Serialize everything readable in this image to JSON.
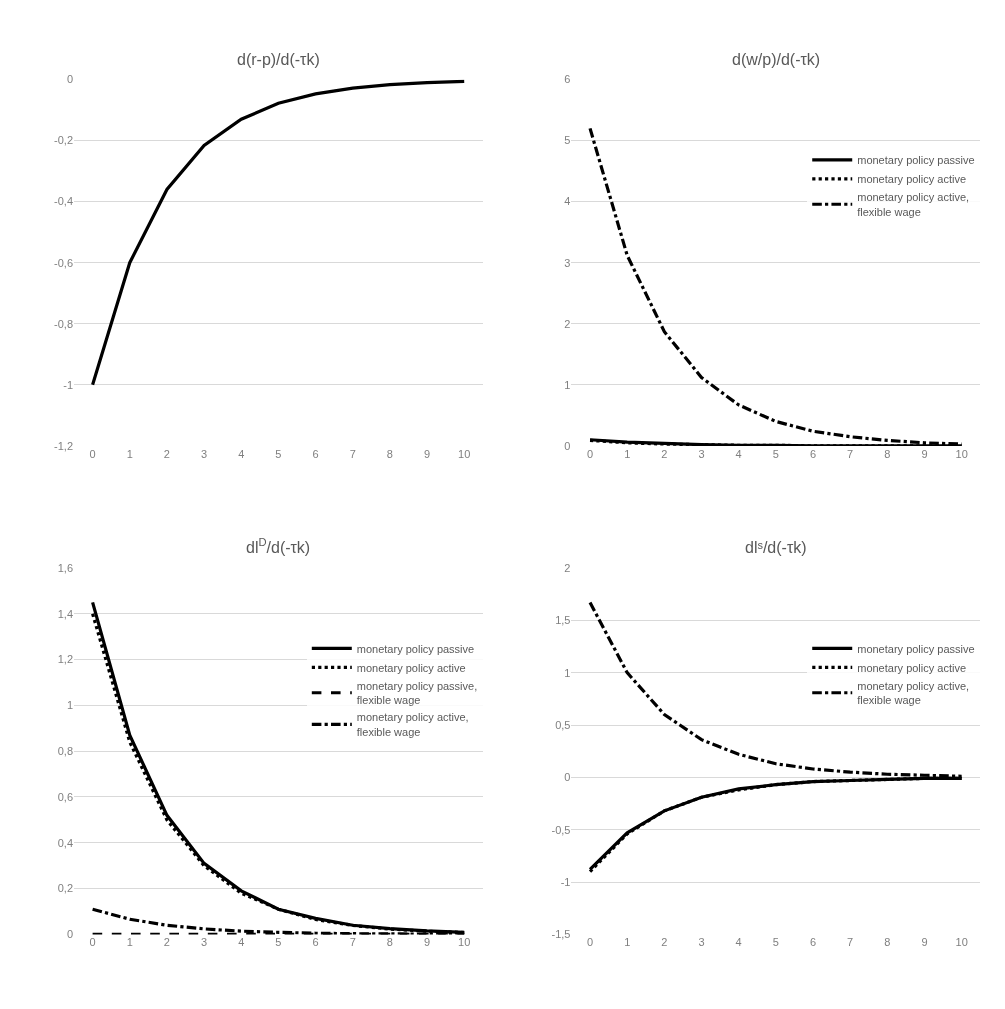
{
  "chart_data": [
    {
      "type": "line",
      "title": "d(r-p)/d(-τk)",
      "categories": [
        "0",
        "1",
        "2",
        "3",
        "4",
        "5",
        "6",
        "7",
        "8",
        "9",
        "10"
      ],
      "ylim": [
        -1.2,
        0
      ],
      "yticks": [
        {
          "value": -1.2,
          "label": "-1,2"
        },
        {
          "value": -1,
          "label": "-1"
        },
        {
          "value": -0.8,
          "label": "-0,8"
        },
        {
          "value": -0.6,
          "label": "-0,6"
        },
        {
          "value": -0.4,
          "label": "-0,4"
        },
        {
          "value": -0.2,
          "label": "-0,2"
        },
        {
          "value": 0,
          "label": "0"
        }
      ],
      "grid": "y",
      "legend": false,
      "series": [
        {
          "color": "#000000",
          "line_style": "solid",
          "values": [
            -1,
            -0.6,
            -0.36,
            -0.216,
            -0.13,
            -0.078,
            -0.047,
            -0.028,
            -0.017,
            -0.01,
            -0.006
          ]
        }
      ]
    },
    {
      "type": "line",
      "title": "d(w/p)/d(-τk)",
      "categories": [
        "0",
        "1",
        "2",
        "3",
        "4",
        "5",
        "6",
        "7",
        "8",
        "9",
        "10"
      ],
      "ylim": [
        0,
        6
      ],
      "yticks": [
        0,
        1,
        2,
        3,
        4,
        5,
        6
      ],
      "grid": "y",
      "legend": "right",
      "series": [
        {
          "name": "monetary policy passive",
          "color": "#000000",
          "line_style": "solid",
          "values": [
            0.1,
            0.06,
            0.04,
            0.02,
            0.01,
            0.01,
            0,
            0,
            0,
            0,
            0
          ]
        },
        {
          "name": "monetary policy active",
          "color": "#000000",
          "line_style": "dotted",
          "values": [
            0.09,
            0.05,
            0.03,
            0.02,
            0.01,
            0.01,
            0,
            0,
            0,
            0,
            0
          ]
        },
        {
          "name": "monetary policy active, flexible wage",
          "color": "#000000",
          "line_style": "dashdot",
          "values": [
            5.2,
            3.12,
            1.87,
            1.12,
            0.67,
            0.4,
            0.24,
            0.15,
            0.09,
            0.05,
            0.03
          ]
        }
      ]
    },
    {
      "type": "line",
      "title": "dl$^{D}$/d(-τk)",
      "categories": [
        "0",
        "1",
        "2",
        "3",
        "4",
        "5",
        "6",
        "7",
        "8",
        "9",
        "10"
      ],
      "ylim": [
        0,
        1.6
      ],
      "yticks": [
        0,
        {
          "value": 0.2,
          "label": "0,2"
        },
        {
          "value": 0.4,
          "label": "0,4"
        },
        {
          "value": 0.6,
          "label": "0,6"
        },
        {
          "value": 0.8,
          "label": "0,8"
        },
        1,
        {
          "value": 1.2,
          "label": "1,2"
        },
        {
          "value": 1.4,
          "label": "1,4"
        },
        {
          "value": 1.6,
          "label": "1,6"
        }
      ],
      "grid": "y",
      "legend": "right",
      "series": [
        {
          "name": "monetary policy passive",
          "color": "#000000",
          "line_style": "solid",
          "values": [
            1.45,
            0.87,
            0.52,
            0.31,
            0.19,
            0.11,
            0.07,
            0.04,
            0.025,
            0.015,
            0.009
          ]
        },
        {
          "name": "monetary policy active",
          "color": "#000000",
          "line_style": "dotted",
          "values": [
            1.4,
            0.84,
            0.5,
            0.3,
            0.18,
            0.11,
            0.065,
            0.039,
            0.023,
            0.014,
            0.008
          ]
        },
        {
          "name": "monetary policy passive, flexible wage",
          "color": "#000000",
          "line_style": "dashed",
          "values": [
            0,
            0,
            0,
            0,
            0,
            0,
            0,
            0,
            0,
            0,
            0
          ]
        },
        {
          "name": "monetary policy active, flexible wage",
          "color": "#000000",
          "line_style": "dashdot",
          "values": [
            0.11,
            0.066,
            0.04,
            0.024,
            0.014,
            0.009,
            0.005,
            0.003,
            0.002,
            0.001,
            0.001
          ]
        }
      ]
    },
    {
      "type": "line",
      "title": "dlˢ/d(-τk)",
      "categories": [
        "0",
        "1",
        "2",
        "3",
        "4",
        "5",
        "6",
        "7",
        "8",
        "9",
        "10"
      ],
      "ylim": [
        -1.5,
        2
      ],
      "yticks": [
        {
          "value": -1.5,
          "label": "-1,5"
        },
        -1,
        {
          "value": -0.5,
          "label": "-0,5"
        },
        0,
        {
          "value": 0.5,
          "label": "0,5"
        },
        1,
        {
          "value": 1.5,
          "label": "1,5"
        },
        2
      ],
      "grid": "y",
      "legend": "right",
      "series": [
        {
          "name": "monetary policy passive",
          "color": "#000000",
          "line_style": "solid",
          "values": [
            -0.88,
            -0.53,
            -0.32,
            -0.19,
            -0.11,
            -0.07,
            -0.04,
            -0.03,
            -0.02,
            -0.01,
            -0.01
          ]
        },
        {
          "name": "monetary policy active",
          "color": "#000000",
          "line_style": "dotted",
          "values": [
            -0.9,
            -0.54,
            -0.32,
            -0.19,
            -0.12,
            -0.07,
            -0.04,
            -0.03,
            -0.02,
            -0.01,
            -0.01
          ]
        },
        {
          "name": "monetary policy active, flexible wage",
          "color": "#000000",
          "line_style": "dashdot",
          "values": [
            1.67,
            1.0,
            0.6,
            0.36,
            0.22,
            0.13,
            0.08,
            0.05,
            0.03,
            0.02,
            0.01
          ]
        }
      ]
    }
  ]
}
